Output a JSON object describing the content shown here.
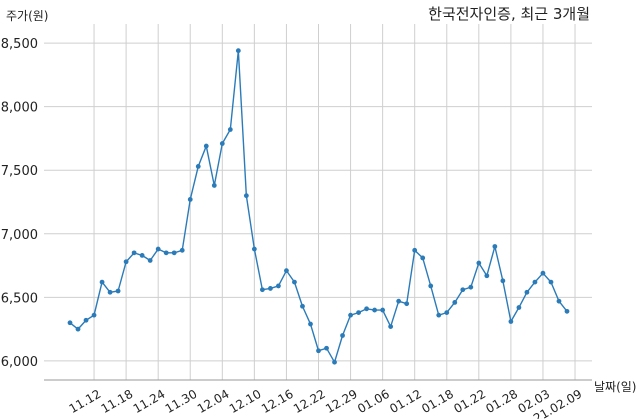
{
  "chart_data": {
    "type": "line",
    "title": "한국전자인증, 최근 3개월",
    "ylabel": "주가(원)",
    "xlabel": "날짜(일)",
    "ylim": [
      5850,
      8650
    ],
    "yticks": [
      6000,
      6500,
      7000,
      7500,
      8000,
      8500
    ],
    "ytick_labels": [
      "6,000",
      "6,500",
      "7,000",
      "7,500",
      "8,000",
      "8,500"
    ],
    "grid": true,
    "xtick_labels": [
      "11.12",
      "11.18",
      "11.24",
      "11.30",
      "12.04",
      "12.10",
      "12.16",
      "12.22",
      "12.29",
      "01.06",
      "01.12",
      "01.18",
      "01.22",
      "01.28",
      "02.03",
      "21.02.09"
    ],
    "xtick_indices": [
      3,
      7,
      11,
      15,
      19,
      23,
      27,
      31,
      35,
      39,
      43,
      47,
      51,
      55,
      59,
      63
    ],
    "series": [
      {
        "color": "#2b7bb9",
        "values": [
          6300,
          6250,
          6320,
          6360,
          6620,
          6540,
          6550,
          6780,
          6850,
          6830,
          6790,
          6880,
          6850,
          6850,
          6870,
          7270,
          7530,
          7690,
          7380,
          7710,
          7820,
          8440,
          7300,
          6880,
          6560,
          6570,
          6590,
          6710,
          6620,
          6430,
          6290,
          6080,
          6100,
          5990,
          6200,
          6360,
          6380,
          6410,
          6400,
          6400,
          6270,
          6470,
          6450,
          6870,
          6810,
          6590,
          6360,
          6380,
          6460,
          6560,
          6580,
          6770,
          6670,
          6900,
          6630,
          6310,
          6420,
          6540,
          6620,
          6690,
          6620,
          6470,
          6390
        ]
      }
    ]
  }
}
